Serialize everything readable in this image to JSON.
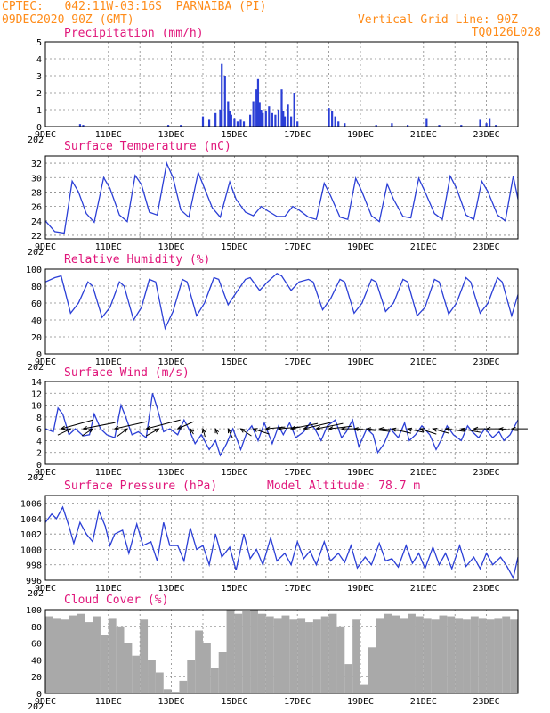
{
  "header": {
    "line1": "CPTEC:   042:11W-03:16S  PARNAIBA (PI)",
    "line2": "09DEC2020 90Z (GMT)",
    "vgrid_label": "Vertical Grid Line: 90Z",
    "code": "TQ0126L028"
  },
  "colors": {
    "header": "#ff8c1a",
    "title": "#e0157a",
    "series": "#2b3fd6",
    "cloud": "#a9a9a9"
  },
  "x_axis": {
    "day_range": [
      9,
      24
    ],
    "tick_labels": [
      "9DEC",
      "11DEC",
      "13DEC",
      "15DEC",
      "17DEC",
      "19DEC",
      "21DEC",
      "23DEC"
    ],
    "tick_days": [
      9,
      11,
      13,
      15,
      17,
      19,
      21,
      23
    ],
    "partial_label": "202"
  },
  "chart_data": [
    {
      "id": "precip",
      "type": "bar",
      "title": "Precipitation (mm/h)",
      "ylim": [
        0,
        5
      ],
      "yticks": [
        0,
        1,
        2,
        3,
        4,
        5
      ],
      "x": [
        10.1,
        10.2,
        12.9,
        13.3,
        14.0,
        14.2,
        14.4,
        14.55,
        14.6,
        14.7,
        14.8,
        14.85,
        14.9,
        15.0,
        15.1,
        15.2,
        15.3,
        15.5,
        15.6,
        15.7,
        15.75,
        15.8,
        15.85,
        15.9,
        16.0,
        16.1,
        16.2,
        16.3,
        16.4,
        16.5,
        16.55,
        16.6,
        16.7,
        16.8,
        16.9,
        17.0,
        18.0,
        18.1,
        18.2,
        18.3,
        18.5,
        19.5,
        20.0,
        20.5,
        21.1,
        21.5,
        22.2,
        22.8,
        23.0,
        23.1,
        23.3
      ],
      "values": [
        0.15,
        0.1,
        0.1,
        0.1,
        0.6,
        0.4,
        0.8,
        1.0,
        3.7,
        3.0,
        1.5,
        0.9,
        0.7,
        0.5,
        0.3,
        0.4,
        0.3,
        0.7,
        1.5,
        2.2,
        2.8,
        1.4,
        1.0,
        0.8,
        0.9,
        1.2,
        0.8,
        0.7,
        1.0,
        2.2,
        0.9,
        0.6,
        1.3,
        0.6,
        2.0,
        0.3,
        1.1,
        0.9,
        0.6,
        0.3,
        0.2,
        0.1,
        0.2,
        0.1,
        0.5,
        0.1,
        0.1,
        0.4,
        0.2,
        0.5,
        0.1
      ]
    },
    {
      "id": "temp",
      "type": "line",
      "title": "Surface Temperature (nC)",
      "ylim": [
        21.5,
        33
      ],
      "yticks": [
        22,
        24,
        26,
        28,
        30,
        32
      ],
      "x": [
        9.0,
        9.3,
        9.6,
        9.85,
        10.05,
        10.3,
        10.55,
        10.85,
        11.05,
        11.35,
        11.6,
        11.85,
        12.05,
        12.3,
        12.55,
        12.85,
        13.05,
        13.3,
        13.55,
        13.85,
        14.05,
        14.3,
        14.55,
        14.85,
        15.05,
        15.35,
        15.6,
        15.85,
        16.05,
        16.35,
        16.6,
        16.85,
        17.05,
        17.35,
        17.6,
        17.85,
        18.05,
        18.35,
        18.6,
        18.85,
        19.05,
        19.35,
        19.6,
        19.85,
        20.05,
        20.35,
        20.6,
        20.85,
        21.05,
        21.35,
        21.6,
        21.85,
        22.05,
        22.35,
        22.6,
        22.85,
        23.05,
        23.35,
        23.6,
        23.85,
        24.0
      ],
      "values": [
        24.0,
        22.5,
        22.3,
        29.5,
        28.0,
        25.0,
        23.8,
        30.0,
        28.5,
        24.8,
        23.9,
        30.3,
        29.0,
        25.2,
        24.8,
        32.0,
        30.0,
        25.5,
        24.5,
        30.7,
        28.5,
        25.8,
        24.5,
        29.4,
        27.0,
        25.2,
        24.7,
        26.0,
        25.4,
        24.6,
        24.6,
        26.0,
        25.5,
        24.5,
        24.2,
        29.2,
        27.5,
        24.5,
        24.2,
        29.9,
        28.0,
        24.7,
        23.9,
        29.1,
        27.0,
        24.6,
        24.4,
        29.9,
        28.0,
        25.0,
        24.2,
        30.2,
        28.5,
        24.8,
        24.2,
        29.5,
        28.0,
        24.8,
        24.0,
        30.2,
        27.0
      ]
    },
    {
      "id": "rh",
      "type": "line",
      "title": "Relative Humidity (%)",
      "ylim": [
        0,
        100
      ],
      "yticks": [
        0,
        20,
        40,
        60,
        80,
        100
      ],
      "x": [
        9.0,
        9.3,
        9.5,
        9.8,
        10.05,
        10.35,
        10.5,
        10.8,
        11.05,
        11.35,
        11.5,
        11.8,
        12.05,
        12.3,
        12.5,
        12.8,
        13.05,
        13.35,
        13.5,
        13.8,
        14.05,
        14.35,
        14.5,
        14.8,
        15.05,
        15.35,
        15.5,
        15.8,
        16.05,
        16.35,
        16.5,
        16.8,
        17.05,
        17.35,
        17.5,
        17.8,
        18.05,
        18.35,
        18.5,
        18.8,
        19.05,
        19.35,
        19.5,
        19.8,
        20.05,
        20.35,
        20.5,
        20.8,
        21.05,
        21.35,
        21.5,
        21.8,
        22.05,
        22.35,
        22.5,
        22.8,
        23.05,
        23.35,
        23.5,
        23.8,
        24.0
      ],
      "values": [
        85,
        90,
        92,
        48,
        60,
        85,
        80,
        43,
        55,
        85,
        80,
        40,
        55,
        88,
        85,
        30,
        50,
        88,
        85,
        45,
        60,
        90,
        88,
        58,
        72,
        88,
        90,
        75,
        85,
        95,
        92,
        75,
        85,
        88,
        85,
        52,
        65,
        88,
        85,
        48,
        60,
        88,
        85,
        50,
        60,
        88,
        85,
        45,
        55,
        88,
        85,
        47,
        60,
        90,
        85,
        48,
        60,
        90,
        85,
        45,
        70
      ]
    },
    {
      "id": "wind",
      "type": "line",
      "title": "Surface Wind (m/s)",
      "ylim": [
        0,
        14
      ],
      "yticks": [
        0,
        2,
        4,
        6,
        8,
        10,
        12,
        14
      ],
      "x": [
        9.0,
        9.25,
        9.4,
        9.55,
        9.75,
        9.95,
        10.2,
        10.4,
        10.55,
        10.75,
        10.95,
        11.2,
        11.4,
        11.55,
        11.75,
        11.95,
        12.2,
        12.4,
        12.55,
        12.75,
        12.95,
        13.2,
        13.4,
        13.55,
        13.75,
        13.95,
        14.2,
        14.4,
        14.55,
        14.75,
        14.95,
        15.2,
        15.4,
        15.55,
        15.75,
        15.95,
        16.2,
        16.4,
        16.55,
        16.75,
        16.95,
        17.2,
        17.4,
        17.55,
        17.75,
        17.95,
        18.2,
        18.4,
        18.55,
        18.75,
        18.95,
        19.2,
        19.4,
        19.55,
        19.75,
        19.95,
        20.2,
        20.4,
        20.55,
        20.75,
        20.95,
        21.2,
        21.4,
        21.55,
        21.75,
        21.95,
        22.2,
        22.4,
        22.55,
        22.75,
        22.95,
        23.2,
        23.4,
        23.55,
        23.75,
        24.0
      ],
      "values": [
        6.0,
        5.5,
        9.5,
        8.5,
        5.0,
        6.0,
        4.8,
        5.0,
        8.5,
        6.0,
        5.0,
        4.5,
        10.0,
        8.0,
        5.0,
        5.5,
        4.5,
        12.0,
        9.5,
        5.5,
        6.0,
        5.0,
        7.5,
        6.0,
        3.5,
        5.0,
        2.5,
        4.0,
        1.5,
        3.5,
        6.0,
        2.5,
        5.5,
        6.5,
        4.0,
        7.0,
        3.5,
        6.5,
        5.0,
        7.0,
        4.5,
        5.5,
        7.0,
        6.0,
        4.0,
        6.5,
        7.5,
        4.5,
        5.5,
        7.5,
        3.0,
        6.0,
        5.0,
        2.0,
        3.5,
        6.0,
        4.5,
        7.0,
        4.0,
        5.0,
        6.5,
        5.0,
        2.5,
        4.0,
        6.5,
        5.0,
        4.0,
        6.5,
        5.5,
        4.5,
        6.0,
        4.5,
        5.5,
        4.0,
        5.0,
        7.5
      ],
      "arrows": [
        {
          "day": 9.5,
          "u": 3.0,
          "v": -1.0
        },
        {
          "day": 9.8,
          "u": -1.2,
          "v": 0.7
        },
        {
          "day": 10.2,
          "u": 3.0,
          "v": -0.7
        },
        {
          "day": 10.5,
          "u": -1.0,
          "v": 0.8
        },
        {
          "day": 11.2,
          "u": 3.0,
          "v": -0.8
        },
        {
          "day": 11.6,
          "u": -1.0,
          "v": 0.9
        },
        {
          "day": 12.2,
          "u": 3.2,
          "v": -1.0
        },
        {
          "day": 12.6,
          "u": -1.2,
          "v": 0.8
        },
        {
          "day": 13.2,
          "u": 1.5,
          "v": -0.8
        },
        {
          "day": 13.6,
          "u": 0.3,
          "v": 0.6
        },
        {
          "day": 14.0,
          "u": 0.2,
          "v": 0.9
        },
        {
          "day": 14.4,
          "u": 0.2,
          "v": 0.6
        },
        {
          "day": 14.8,
          "u": 0.4,
          "v": 1.0
        },
        {
          "day": 15.2,
          "u": 1.0,
          "v": 0.8
        },
        {
          "day": 15.6,
          "u": 1.5,
          "v": 0.6
        },
        {
          "day": 16.0,
          "u": 1.8,
          "v": -0.2
        },
        {
          "day": 16.4,
          "u": 2.0,
          "v": -0.2
        },
        {
          "day": 16.8,
          "u": 2.5,
          "v": -0.6
        },
        {
          "day": 17.2,
          "u": 2.5,
          "v": -0.7
        },
        {
          "day": 17.6,
          "u": 2.5,
          "v": -0.6
        },
        {
          "day": 18.0,
          "u": 2.2,
          "v": -0.3
        },
        {
          "day": 18.4,
          "u": 1.8,
          "v": 0.0
        },
        {
          "day": 18.8,
          "u": 2.0,
          "v": 0.2
        },
        {
          "day": 19.2,
          "u": 2.2,
          "v": 0.3
        },
        {
          "day": 19.6,
          "u": 1.8,
          "v": 0.2
        },
        {
          "day": 20.0,
          "u": 1.8,
          "v": 0.5
        },
        {
          "day": 20.5,
          "u": 1.5,
          "v": 0.4
        },
        {
          "day": 20.9,
          "u": 1.5,
          "v": 0.6
        },
        {
          "day": 21.3,
          "u": 1.5,
          "v": 0.5
        },
        {
          "day": 21.7,
          "u": 1.8,
          "v": 0.3
        },
        {
          "day": 22.2,
          "u": 1.8,
          "v": 0.4
        },
        {
          "day": 22.6,
          "u": 1.5,
          "v": 0.0
        },
        {
          "day": 23.0,
          "u": 1.5,
          "v": 0.0
        },
        {
          "day": 23.4,
          "u": 1.8,
          "v": 0.2
        },
        {
          "day": 23.8,
          "u": 1.5,
          "v": 0.0
        }
      ]
    },
    {
      "id": "pressure",
      "type": "line",
      "title": "Surface Pressure (hPa)",
      "annotation": "Model Altitude: 78.7 m",
      "ylim": [
        996,
        1007
      ],
      "yticks": [
        996,
        998,
        1000,
        1002,
        1004,
        1006
      ],
      "x": [
        9.0,
        9.2,
        9.35,
        9.55,
        9.75,
        9.9,
        10.1,
        10.3,
        10.5,
        10.7,
        10.9,
        11.05,
        11.2,
        11.45,
        11.65,
        11.9,
        12.1,
        12.35,
        12.55,
        12.75,
        12.95,
        13.2,
        13.4,
        13.6,
        13.8,
        14.0,
        14.2,
        14.4,
        14.6,
        14.85,
        15.05,
        15.3,
        15.5,
        15.7,
        15.9,
        16.15,
        16.35,
        16.6,
        16.8,
        17.0,
        17.2,
        17.4,
        17.6,
        17.85,
        18.05,
        18.3,
        18.5,
        18.7,
        18.9,
        19.15,
        19.35,
        19.6,
        19.8,
        20.0,
        20.2,
        20.45,
        20.65,
        20.85,
        21.05,
        21.3,
        21.5,
        21.7,
        21.9,
        22.15,
        22.35,
        22.6,
        22.8,
        23.0,
        23.2,
        23.45,
        23.65,
        23.85,
        24.0
      ],
      "values": [
        1003.5,
        1004.6,
        1004.0,
        1005.5,
        1003.0,
        1000.8,
        1003.5,
        1002.0,
        1001.0,
        1005.0,
        1003.0,
        1000.5,
        1002.0,
        1002.5,
        999.5,
        1003.3,
        1000.5,
        1001.0,
        998.5,
        1003.5,
        1000.5,
        1000.5,
        998.5,
        1002.8,
        1000.0,
        1000.5,
        998.0,
        1002.0,
        999.0,
        1000.3,
        997.3,
        1002.0,
        998.8,
        1000.0,
        998.0,
        1001.5,
        998.5,
        999.5,
        998.0,
        1001.0,
        998.8,
        999.8,
        998.0,
        1001.0,
        998.5,
        999.5,
        998.3,
        1000.5,
        997.6,
        999.0,
        998.0,
        1000.8,
        998.5,
        998.8,
        997.7,
        1000.5,
        998.2,
        999.5,
        997.5,
        1000.3,
        998.0,
        999.5,
        997.5,
        1000.5,
        997.8,
        999.0,
        997.5,
        999.5,
        998.0,
        999.0,
        997.8,
        996.3,
        999.0
      ]
    },
    {
      "id": "cloud",
      "type": "bar",
      "title": "Cloud Cover (%)",
      "ylim": [
        0,
        100
      ],
      "yticks": [
        0,
        20,
        40,
        60,
        80,
        100
      ],
      "x": [
        9.0,
        9.25,
        9.5,
        9.75,
        10.0,
        10.25,
        10.5,
        10.75,
        11.0,
        11.25,
        11.5,
        11.75,
        12.0,
        12.25,
        12.5,
        12.75,
        13.0,
        13.25,
        13.5,
        13.75,
        14.0,
        14.25,
        14.5,
        14.75,
        15.0,
        15.25,
        15.5,
        15.75,
        16.0,
        16.25,
        16.5,
        16.75,
        17.0,
        17.25,
        17.5,
        17.75,
        18.0,
        18.25,
        18.5,
        18.75,
        19.0,
        19.25,
        19.5,
        19.75,
        20.0,
        20.25,
        20.5,
        20.75,
        21.0,
        21.25,
        21.5,
        21.75,
        22.0,
        22.25,
        22.5,
        22.75,
        23.0,
        23.25,
        23.5,
        23.75
      ],
      "values": [
        92,
        90,
        88,
        93,
        95,
        85,
        92,
        70,
        90,
        80,
        60,
        45,
        88,
        40,
        25,
        5,
        2,
        15,
        40,
        75,
        60,
        30,
        50,
        100,
        95,
        98,
        100,
        95,
        92,
        90,
        93,
        88,
        90,
        85,
        88,
        92,
        95,
        80,
        35,
        88,
        10,
        55,
        90,
        95,
        93,
        90,
        95,
        92,
        90,
        88,
        93,
        92,
        90,
        88,
        92,
        90,
        88,
        90,
        92,
        88
      ]
    }
  ]
}
